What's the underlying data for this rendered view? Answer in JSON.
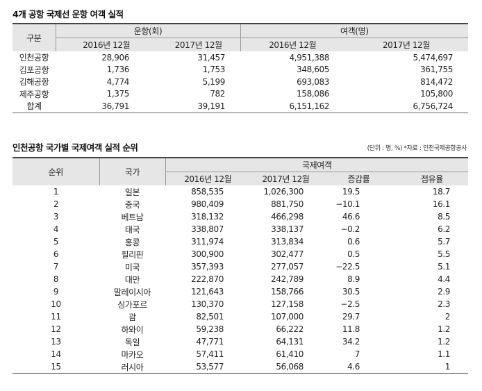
{
  "table1": {
    "title": "4개 공항 국제선 운항 여객 실적",
    "header_category": "구분",
    "header_flights": "운항(회)",
    "header_passengers": "여객(명)",
    "col_2016": "2016년 12월",
    "col_2017": "2017년 12월",
    "rows": [
      {
        "name": "인천공항",
        "f2016": "28,906",
        "f2017": "31,457",
        "p2016": "4,951,388",
        "p2017": "5,474,697"
      },
      {
        "name": "김포공항",
        "f2016": "1,736",
        "f2017": "1,753",
        "p2016": "348,605",
        "p2017": "361,755"
      },
      {
        "name": "김해공항",
        "f2016": "4,774",
        "f2017": "5,199",
        "p2016": "693,083",
        "p2017": "814,472"
      },
      {
        "name": "제주공항",
        "f2016": "1,375",
        "f2017": "782",
        "p2016": "158,086",
        "p2017": "105,800"
      },
      {
        "name": "합계",
        "f2016": "36,791",
        "f2017": "39,191",
        "p2016": "6,151,162",
        "p2017": "6,756,724"
      }
    ]
  },
  "table2": {
    "title": "인천공항 국가별 국제여객 실적 순위",
    "note": "(단위 : 명, %) *자료 : 인천국제공항공사",
    "header_rank": "순위",
    "header_country": "국가",
    "header_intl": "국제여객",
    "col_2016": "2016년 12월",
    "col_2017": "2017년 12월",
    "col_growth": "증감률",
    "col_share": "점유율",
    "rows": [
      {
        "rank": "1",
        "country": "일본",
        "v2016": "858,535",
        "v2017": "1,026,300",
        "growth": "19.5",
        "share": "18.7"
      },
      {
        "rank": "2",
        "country": "중국",
        "v2016": "980,409",
        "v2017": "881,750",
        "growth": "−10.1",
        "share": "16.1"
      },
      {
        "rank": "3",
        "country": "베트남",
        "v2016": "318,132",
        "v2017": "466,298",
        "growth": "46.6",
        "share": "8.5"
      },
      {
        "rank": "4",
        "country": "태국",
        "v2016": "338,807",
        "v2017": "338,137",
        "growth": "−0.2",
        "share": "6.2"
      },
      {
        "rank": "5",
        "country": "홍콩",
        "v2016": "311,974",
        "v2017": "313,834",
        "growth": "0.6",
        "share": "5.7"
      },
      {
        "rank": "6",
        "country": "필리핀",
        "v2016": "300,900",
        "v2017": "302,477",
        "growth": "0.5",
        "share": "5.5"
      },
      {
        "rank": "7",
        "country": "미국",
        "v2016": "357,393",
        "v2017": "277,057",
        "growth": "−22.5",
        "share": "5.1"
      },
      {
        "rank": "8",
        "country": "대만",
        "v2016": "222,870",
        "v2017": "242,789",
        "growth": "8.9",
        "share": "4.4"
      },
      {
        "rank": "9",
        "country": "말레이시아",
        "v2016": "121,643",
        "v2017": "158,766",
        "growth": "30.5",
        "share": "2.9"
      },
      {
        "rank": "10",
        "country": "싱가포르",
        "v2016": "130,370",
        "v2017": "127,158",
        "growth": "−2.5",
        "share": "2.3"
      },
      {
        "rank": "11",
        "country": "괌",
        "v2016": "82,501",
        "v2017": "107,000",
        "growth": "29.7",
        "share": "2"
      },
      {
        "rank": "12",
        "country": "하와이",
        "v2016": "59,238",
        "v2017": "66,222",
        "growth": "11.8",
        "share": "1.2"
      },
      {
        "rank": "13",
        "country": "독일",
        "v2016": "47,771",
        "v2017": "64,131",
        "growth": "34.2",
        "share": "1.2"
      },
      {
        "rank": "14",
        "country": "마카오",
        "v2016": "57,411",
        "v2017": "61,410",
        "growth": "7",
        "share": "1.1"
      },
      {
        "rank": "15",
        "country": "러시아",
        "v2016": "53,577",
        "v2017": "56,068",
        "growth": "4.6",
        "share": "1"
      }
    ]
  }
}
